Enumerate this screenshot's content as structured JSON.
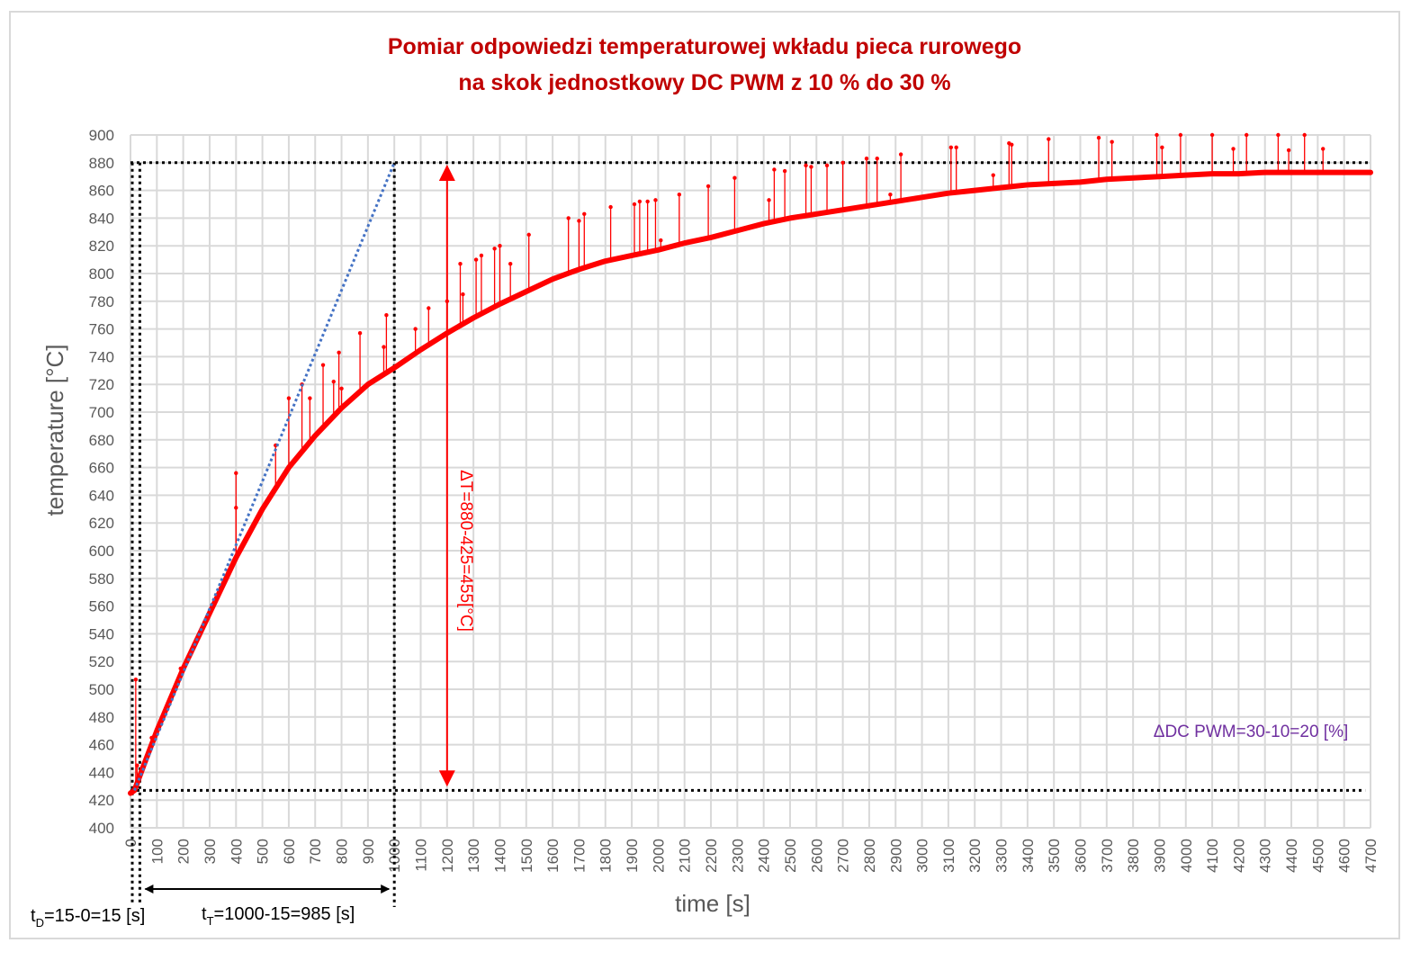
{
  "chart_data": {
    "type": "line",
    "title": [
      "Pomiar odpowiedzi temperaturowej wkładu pieca rurowego",
      "na skok jednostkowy DC PWM z 10 % do 30 %"
    ],
    "xlabel": "time [s]",
    "ylabel": "temperature [°C]",
    "xlim": [
      0,
      4700
    ],
    "ylim": [
      400,
      900
    ],
    "xticks": [
      0,
      100,
      200,
      300,
      400,
      500,
      600,
      700,
      800,
      900,
      1000,
      1100,
      1200,
      1300,
      1400,
      1500,
      1600,
      1700,
      1800,
      1900,
      2000,
      2100,
      2200,
      2300,
      2400,
      2500,
      2600,
      2700,
      2800,
      2900,
      3000,
      3100,
      3200,
      3300,
      3400,
      3500,
      3600,
      3700,
      3800,
      3900,
      4000,
      4100,
      4200,
      4300,
      4400,
      4500,
      4600,
      4700
    ],
    "yticks": [
      400,
      420,
      440,
      460,
      480,
      500,
      520,
      540,
      560,
      580,
      600,
      620,
      640,
      660,
      680,
      700,
      720,
      740,
      760,
      780,
      800,
      820,
      840,
      860,
      880,
      900
    ],
    "grid": true,
    "series": [
      {
        "name": "measured temperature",
        "color": "#ff0000",
        "x": [
          0,
          15,
          50,
          100,
          200,
          300,
          400,
          500,
          600,
          700,
          800,
          900,
          1000,
          1100,
          1200,
          1300,
          1400,
          1500,
          1600,
          1700,
          1800,
          1900,
          2000,
          2100,
          2200,
          2300,
          2400,
          2500,
          2600,
          2700,
          2800,
          2900,
          3000,
          3100,
          3200,
          3300,
          3400,
          3500,
          3600,
          3700,
          3800,
          3900,
          4000,
          4100,
          4200,
          4300,
          4400,
          4500,
          4600,
          4700
        ],
        "y": [
          425,
          427,
          445,
          470,
          515,
          555,
          595,
          630,
          660,
          683,
          703,
          720,
          732,
          745,
          757,
          768,
          778,
          787,
          796,
          803,
          809,
          813,
          817,
          822,
          826,
          831,
          836,
          840,
          843,
          846,
          849,
          852,
          855,
          858,
          860,
          862,
          864,
          865,
          866,
          868,
          869,
          870,
          871,
          872,
          872,
          873,
          873,
          873,
          873,
          873
        ]
      },
      {
        "name": "tangent",
        "color": "#4472c4",
        "x": [
          15,
          1000
        ],
        "y": [
          427,
          880
        ]
      }
    ],
    "spikes": [
      [
        20,
        507
      ],
      [
        25,
        445
      ],
      [
        80,
        465
      ],
      [
        190,
        515
      ],
      [
        400,
        656
      ],
      [
        400,
        631
      ],
      [
        550,
        676
      ],
      [
        600,
        710
      ],
      [
        650,
        720
      ],
      [
        680,
        710
      ],
      [
        730,
        734
      ],
      [
        770,
        722
      ],
      [
        790,
        743
      ],
      [
        800,
        717
      ],
      [
        870,
        757
      ],
      [
        960,
        747
      ],
      [
        970,
        770
      ],
      [
        1080,
        760
      ],
      [
        1130,
        775
      ],
      [
        1200,
        780
      ],
      [
        1250,
        807
      ],
      [
        1260,
        785
      ],
      [
        1310,
        810
      ],
      [
        1330,
        813
      ],
      [
        1380,
        818
      ],
      [
        1400,
        820
      ],
      [
        1440,
        807
      ],
      [
        1510,
        828
      ],
      [
        1660,
        840
      ],
      [
        1700,
        838
      ],
      [
        1720,
        843
      ],
      [
        1820,
        848
      ],
      [
        1910,
        850
      ],
      [
        1930,
        852
      ],
      [
        1960,
        852
      ],
      [
        1990,
        853
      ],
      [
        2010,
        824
      ],
      [
        2080,
        857
      ],
      [
        2190,
        863
      ],
      [
        2290,
        869
      ],
      [
        2420,
        853
      ],
      [
        2440,
        875
      ],
      [
        2480,
        874
      ],
      [
        2560,
        878
      ],
      [
        2580,
        877
      ],
      [
        2640,
        878
      ],
      [
        2700,
        880
      ],
      [
        2790,
        883
      ],
      [
        2830,
        883
      ],
      [
        2880,
        857
      ],
      [
        2920,
        886
      ],
      [
        3110,
        891
      ],
      [
        3130,
        891
      ],
      [
        3270,
        871
      ],
      [
        3330,
        894
      ],
      [
        3340,
        893
      ],
      [
        3480,
        897
      ],
      [
        3670,
        898
      ],
      [
        3720,
        895
      ],
      [
        3890,
        900
      ],
      [
        3910,
        891
      ],
      [
        3980,
        900
      ],
      [
        4100,
        900
      ],
      [
        4180,
        890
      ],
      [
        4230,
        900
      ],
      [
        4350,
        900
      ],
      [
        4390,
        889
      ],
      [
        4450,
        900
      ],
      [
        4520,
        890
      ]
    ],
    "reference_lines": {
      "t_start": 0,
      "t_delay_end": 15,
      "t_tangent_end": 1000,
      "T_initial": 427,
      "T_final": 880,
      "delta_arrow_time": 1200
    },
    "annotations": {
      "delta_T": "ΔT=880-425=455[°C]",
      "delta_dc": "ΔDC PWM=30-10=20 [%]",
      "td_main": "t",
      "td_sub": "D",
      "td_rest": "=15-0=15 [s]",
      "tt_main": "t",
      "tt_sub": "T",
      "tt_rest": "=1000-15=985 [s]"
    },
    "colors": {
      "curve": "#ff0000",
      "tangent": "#4472c4",
      "grid": "#d9d9d9",
      "title": "#c00000",
      "delta_dc": "#7030a0",
      "axis_text": "#595959"
    }
  }
}
